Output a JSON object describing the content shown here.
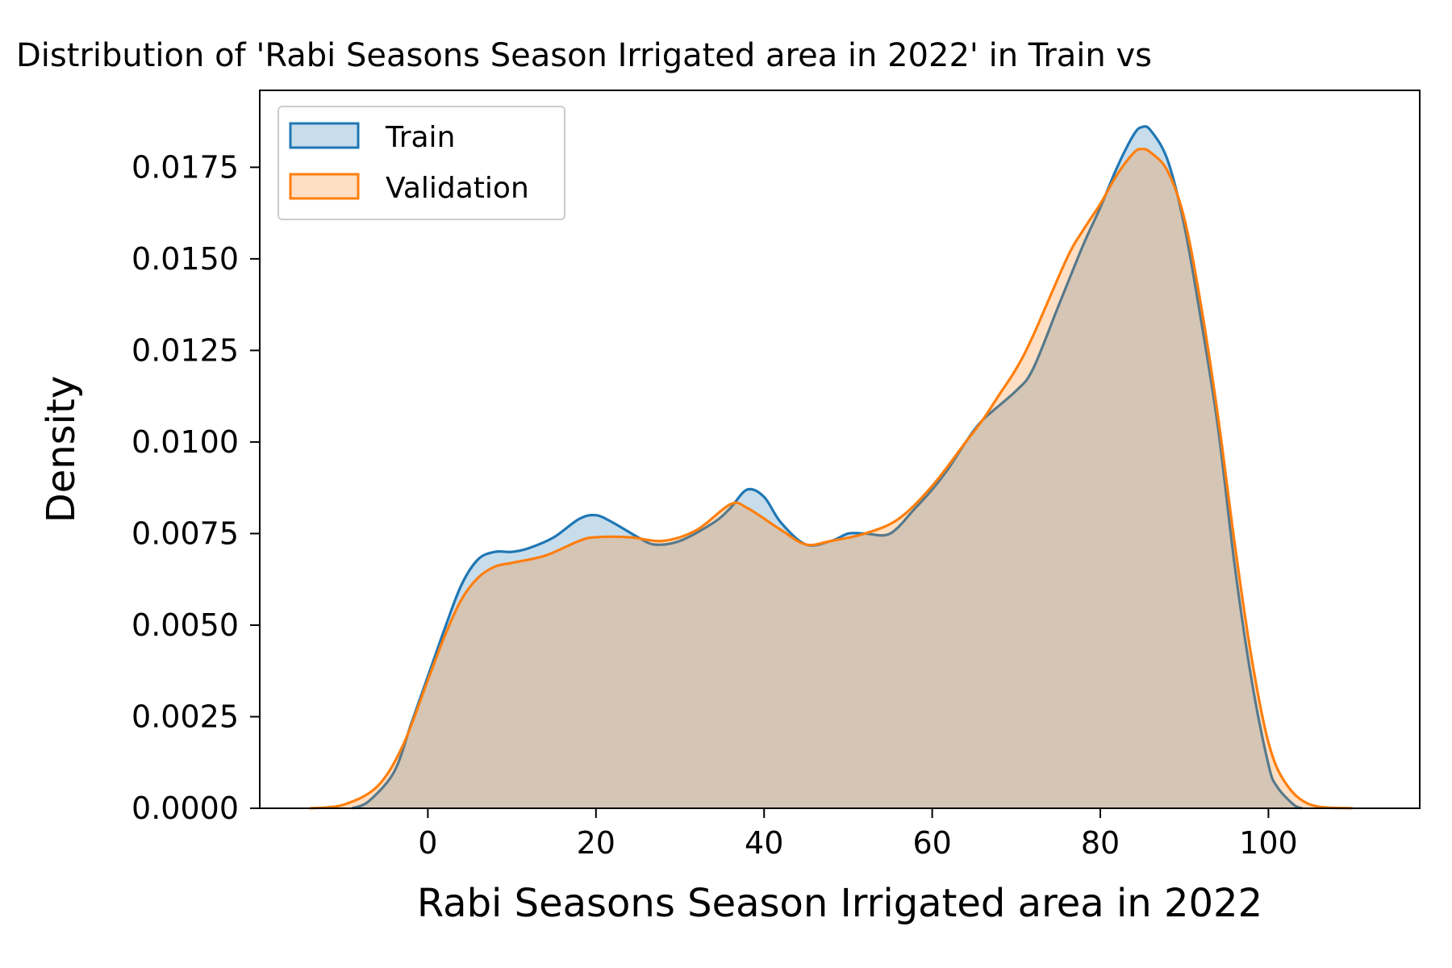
{
  "chart_data": {
    "type": "area",
    "title": "Distribution of 'Rabi Seasons  Season Irrigated area in 2022' in Train vs",
    "xlabel": "Rabi Seasons  Season Irrigated area in 2022",
    "ylabel": "Density",
    "xlim": [
      -20,
      118
    ],
    "ylim": [
      0,
      0.0196
    ],
    "x_ticks": [
      0,
      20,
      40,
      60,
      80,
      100
    ],
    "x_tick_labels": [
      "0",
      "20",
      "40",
      "60",
      "80",
      "100"
    ],
    "y_ticks": [
      0,
      0.0025,
      0.005,
      0.0075,
      0.01,
      0.0125,
      0.015,
      0.0175
    ],
    "y_tick_labels": [
      "0.0000",
      "0.0025",
      "0.0050",
      "0.0075",
      "0.0100",
      "0.0125",
      "0.0150",
      "0.0175"
    ],
    "grid": false,
    "legend_position": "top-left",
    "series": [
      {
        "name": "Train",
        "color": "#1f77b4",
        "points": [
          [
            -9,
            0
          ],
          [
            -7,
            0.0002
          ],
          [
            -4,
            0.001
          ],
          [
            -2,
            0.0023
          ],
          [
            0,
            0.0036
          ],
          [
            2,
            0.0049
          ],
          [
            4,
            0.0061
          ],
          [
            6,
            0.0068
          ],
          [
            8,
            0.007
          ],
          [
            10,
            0.007
          ],
          [
            12,
            0.0071
          ],
          [
            15,
            0.0074
          ],
          [
            18,
            0.0079
          ],
          [
            20,
            0.008
          ],
          [
            22,
            0.0078
          ],
          [
            25,
            0.0074
          ],
          [
            27,
            0.0072
          ],
          [
            30,
            0.0073
          ],
          [
            34,
            0.0078
          ],
          [
            36,
            0.0082
          ],
          [
            38,
            0.0087
          ],
          [
            40,
            0.0085
          ],
          [
            42,
            0.0078
          ],
          [
            45,
            0.0072
          ],
          [
            48,
            0.0073
          ],
          [
            50,
            0.0075
          ],
          [
            52,
            0.0075
          ],
          [
            55,
            0.0075
          ],
          [
            58,
            0.0082
          ],
          [
            60,
            0.0087
          ],
          [
            62,
            0.0093
          ],
          [
            64,
            0.01
          ],
          [
            66,
            0.0106
          ],
          [
            70,
            0.0114
          ],
          [
            72,
            0.012
          ],
          [
            75,
            0.0137
          ],
          [
            78,
            0.0154
          ],
          [
            80,
            0.0164
          ],
          [
            82,
            0.0175
          ],
          [
            84,
            0.0184
          ],
          [
            85,
            0.0186
          ],
          [
            86,
            0.0185
          ],
          [
            88,
            0.0177
          ],
          [
            90,
            0.0159
          ],
          [
            92,
            0.0133
          ],
          [
            94,
            0.0104
          ],
          [
            96,
            0.0066
          ],
          [
            98,
            0.0035
          ],
          [
            100,
            0.0012
          ],
          [
            101,
            0.0006
          ],
          [
            103,
            0.0001
          ],
          [
            104,
            0
          ]
        ]
      },
      {
        "name": "Validation",
        "color": "#ff7f0e",
        "points": [
          [
            -14,
            0
          ],
          [
            -10,
            0.0001
          ],
          [
            -6,
            0.0006
          ],
          [
            -3,
            0.0017
          ],
          [
            0,
            0.0035
          ],
          [
            2,
            0.0047
          ],
          [
            4,
            0.0057
          ],
          [
            6,
            0.0063
          ],
          [
            8,
            0.0066
          ],
          [
            10,
            0.0067
          ],
          [
            14,
            0.0069
          ],
          [
            18,
            0.0073
          ],
          [
            20,
            0.0074
          ],
          [
            24,
            0.0074
          ],
          [
            28,
            0.0073
          ],
          [
            32,
            0.0076
          ],
          [
            36,
            0.0083
          ],
          [
            38,
            0.0082
          ],
          [
            42,
            0.0076
          ],
          [
            45,
            0.0072
          ],
          [
            48,
            0.0073
          ],
          [
            52,
            0.0075
          ],
          [
            56,
            0.0079
          ],
          [
            60,
            0.0088
          ],
          [
            64,
            0.01
          ],
          [
            66,
            0.0106
          ],
          [
            68,
            0.0113
          ],
          [
            70,
            0.012
          ],
          [
            72,
            0.0129
          ],
          [
            76,
            0.015
          ],
          [
            78,
            0.0158
          ],
          [
            80,
            0.0165
          ],
          [
            82,
            0.0173
          ],
          [
            84,
            0.0179
          ],
          [
            85,
            0.018
          ],
          [
            86,
            0.0179
          ],
          [
            88,
            0.0174
          ],
          [
            90,
            0.0161
          ],
          [
            92,
            0.0137
          ],
          [
            94,
            0.0107
          ],
          [
            96,
            0.0072
          ],
          [
            98,
            0.0041
          ],
          [
            100,
            0.0018
          ],
          [
            102,
            0.0007
          ],
          [
            105,
            0.0001
          ],
          [
            110,
            0
          ]
        ]
      }
    ]
  }
}
